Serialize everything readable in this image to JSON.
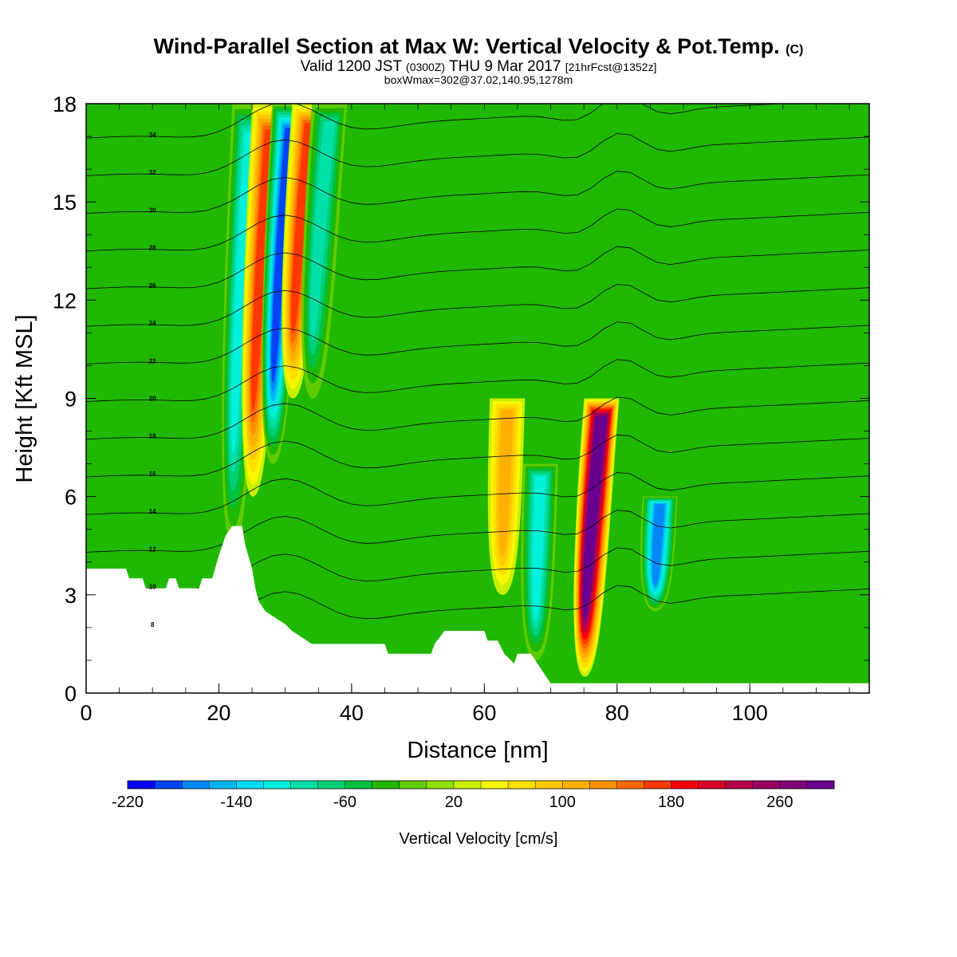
{
  "title": {
    "main": "Wind-Parallel Section at Max W: Vertical Velocity & Pot.Temp.",
    "main_tag": "(C)",
    "valid_prefix": "Valid 1200 JST",
    "valid_utc": "(0300Z)",
    "valid_date": "THU 9 Mar 2017",
    "valid_fcst": "[21hrFcst@1352z]",
    "box": "boxWmax=302@37.02,140.95,1278m"
  },
  "chart_data": {
    "type": "heatmap",
    "xlabel": "Distance [nm]",
    "ylabel": "Height [Kft MSL]",
    "xlim": [
      0,
      118
    ],
    "ylim": [
      0,
      18
    ],
    "x_ticks": [
      "0",
      "20",
      "40",
      "60",
      "80",
      "100"
    ],
    "y_ticks": [
      "0",
      "3",
      "6",
      "9",
      "12",
      "15",
      "18"
    ],
    "x_tick_values": [
      0,
      20,
      40,
      60,
      80,
      100
    ],
    "y_tick_values": [
      0,
      3,
      6,
      9,
      12,
      15,
      18
    ],
    "colorbar": {
      "label": "Vertical Velocity [cm/s]",
      "min": -220,
      "max": 300,
      "step": 20,
      "tick_labels": [
        "-220",
        "-140",
        "-60",
        "20",
        "100",
        "180",
        "260"
      ],
      "tick_values": [
        -220,
        -140,
        -60,
        20,
        100,
        180,
        260
      ],
      "colors": [
        "#0000f0",
        "#0044f8",
        "#0088f8",
        "#00b4f0",
        "#00dcf0",
        "#00f0dc",
        "#00e0a8",
        "#00d078",
        "#00c040",
        "#20b800",
        "#60cc00",
        "#90e000",
        "#c8f000",
        "#f8f800",
        "#ffe000",
        "#ffc800",
        "#ffb000",
        "#ff9000",
        "#ff6800",
        "#ff3800",
        "#f80000",
        "#d80028",
        "#b80048",
        "#980060",
        "#800078",
        "#680090"
      ]
    },
    "velocity_features": [
      {
        "x": 23,
        "z_range": [
          4.5,
          18
        ],
        "w": -120
      },
      {
        "x": 26,
        "z_range": [
          6,
          18
        ],
        "w": 160
      },
      {
        "x": 29,
        "z_range": [
          7,
          18
        ],
        "w": -200
      },
      {
        "x": 32,
        "z_range": [
          9,
          18
        ],
        "w": 160
      },
      {
        "x": 35,
        "z_range": [
          9,
          18
        ],
        "w": -110
      },
      {
        "x": 63,
        "z_range": [
          3,
          9
        ],
        "w": 100
      },
      {
        "x": 68,
        "z_range": [
          1,
          7
        ],
        "w": -120
      },
      {
        "x": 76,
        "z_range": [
          0.5,
          9
        ],
        "w": 300
      },
      {
        "x": 86,
        "z_range": [
          2.5,
          6
        ],
        "w": -180
      }
    ],
    "potential_temperature_contours": {
      "interval": 2,
      "values": [
        8,
        10,
        12,
        14,
        16,
        18,
        20,
        22,
        24,
        26,
        28,
        30,
        32,
        34
      ],
      "labels": [
        "8",
        "10",
        "12",
        "14",
        "16",
        "18",
        "20",
        "22",
        "24",
        "26",
        "28",
        "30",
        "32",
        "34"
      ]
    },
    "terrain": [
      [
        0,
        3.8
      ],
      [
        6,
        3.8
      ],
      [
        6.5,
        3.5
      ],
      [
        8.5,
        3.5
      ],
      [
        9,
        3.2
      ],
      [
        12,
        3.2
      ],
      [
        12.5,
        3.5
      ],
      [
        13.5,
        3.5
      ],
      [
        14,
        3.2
      ],
      [
        17,
        3.2
      ],
      [
        17.5,
        3.5
      ],
      [
        19,
        3.5
      ],
      [
        20,
        4.2
      ],
      [
        21,
        4.8
      ],
      [
        22,
        5.1
      ],
      [
        23.5,
        5.1
      ],
      [
        24,
        4.5
      ],
      [
        25,
        3.8
      ],
      [
        25.5,
        3.2
      ],
      [
        26,
        2.8
      ],
      [
        27,
        2.5
      ],
      [
        28.5,
        2.3
      ],
      [
        30,
        2.1
      ],
      [
        31,
        1.9
      ],
      [
        32.5,
        1.7
      ],
      [
        34,
        1.5
      ],
      [
        40,
        1.5
      ],
      [
        42,
        1.5
      ],
      [
        45,
        1.5
      ],
      [
        45.5,
        1.2
      ],
      [
        52,
        1.2
      ],
      [
        52.5,
        1.5
      ],
      [
        54,
        1.9
      ],
      [
        60,
        1.9
      ],
      [
        60.5,
        1.6
      ],
      [
        62,
        1.6
      ],
      [
        63,
        1.2
      ],
      [
        64,
        1.0
      ],
      [
        64.5,
        0.9
      ],
      [
        65,
        1.2
      ],
      [
        67,
        1.2
      ],
      [
        68,
        0.9
      ],
      [
        69,
        0.6
      ],
      [
        70,
        0.3
      ],
      [
        75,
        0.3
      ],
      [
        85,
        0.3
      ],
      [
        118,
        0.3
      ]
    ]
  }
}
